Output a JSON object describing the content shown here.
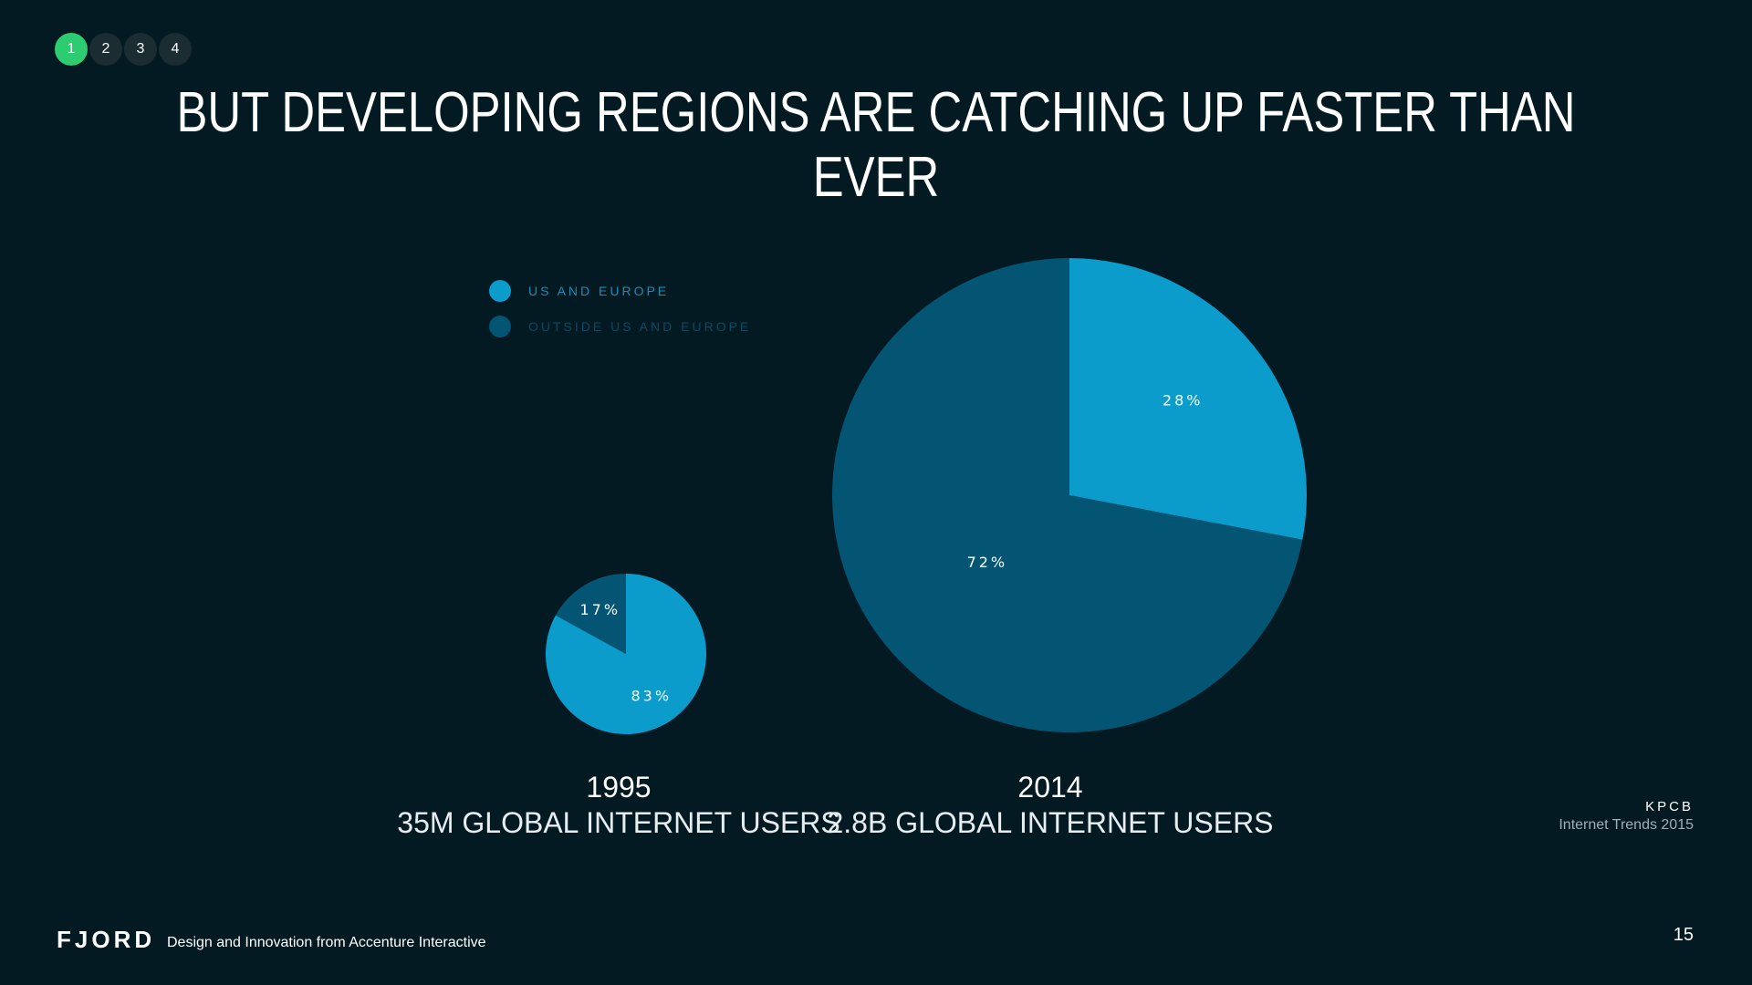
{
  "pager": {
    "pages": [
      "1",
      "2",
      "3",
      "4"
    ],
    "active_index": 0
  },
  "title": "But developing regions are catching up faster than ever",
  "legend": [
    {
      "label": "US AND EUROPE",
      "color": "#0b9ccc",
      "text_color": "#1a8cb8"
    },
    {
      "label": "OUTSIDE US AND EUROPE",
      "color": "#045573",
      "text_color": "#0b4a63"
    }
  ],
  "chart_data": [
    {
      "type": "pie",
      "title": "1995",
      "subtitle": "35M GLOBAL INTERNET USERS",
      "categories": [
        "US AND EUROPE",
        "OUTSIDE US AND EUROPE"
      ],
      "values": [
        83,
        17
      ],
      "labels": [
        "83%",
        "17%"
      ],
      "total_users": "35M"
    },
    {
      "type": "pie",
      "title": "2014",
      "subtitle": "2.8B GLOBAL INTERNET USERS",
      "categories": [
        "US AND EUROPE",
        "OUTSIDE US AND EUROPE"
      ],
      "values": [
        28,
        72
      ],
      "labels": [
        "28%",
        "72%"
      ],
      "total_users": "2.8B"
    }
  ],
  "source": {
    "name": "KPCB",
    "detail": "Internet Trends 2015"
  },
  "footer": {
    "logo": "FJORD",
    "tagline": "Design and Innovation from Accenture Interactive",
    "page_number": "15"
  }
}
